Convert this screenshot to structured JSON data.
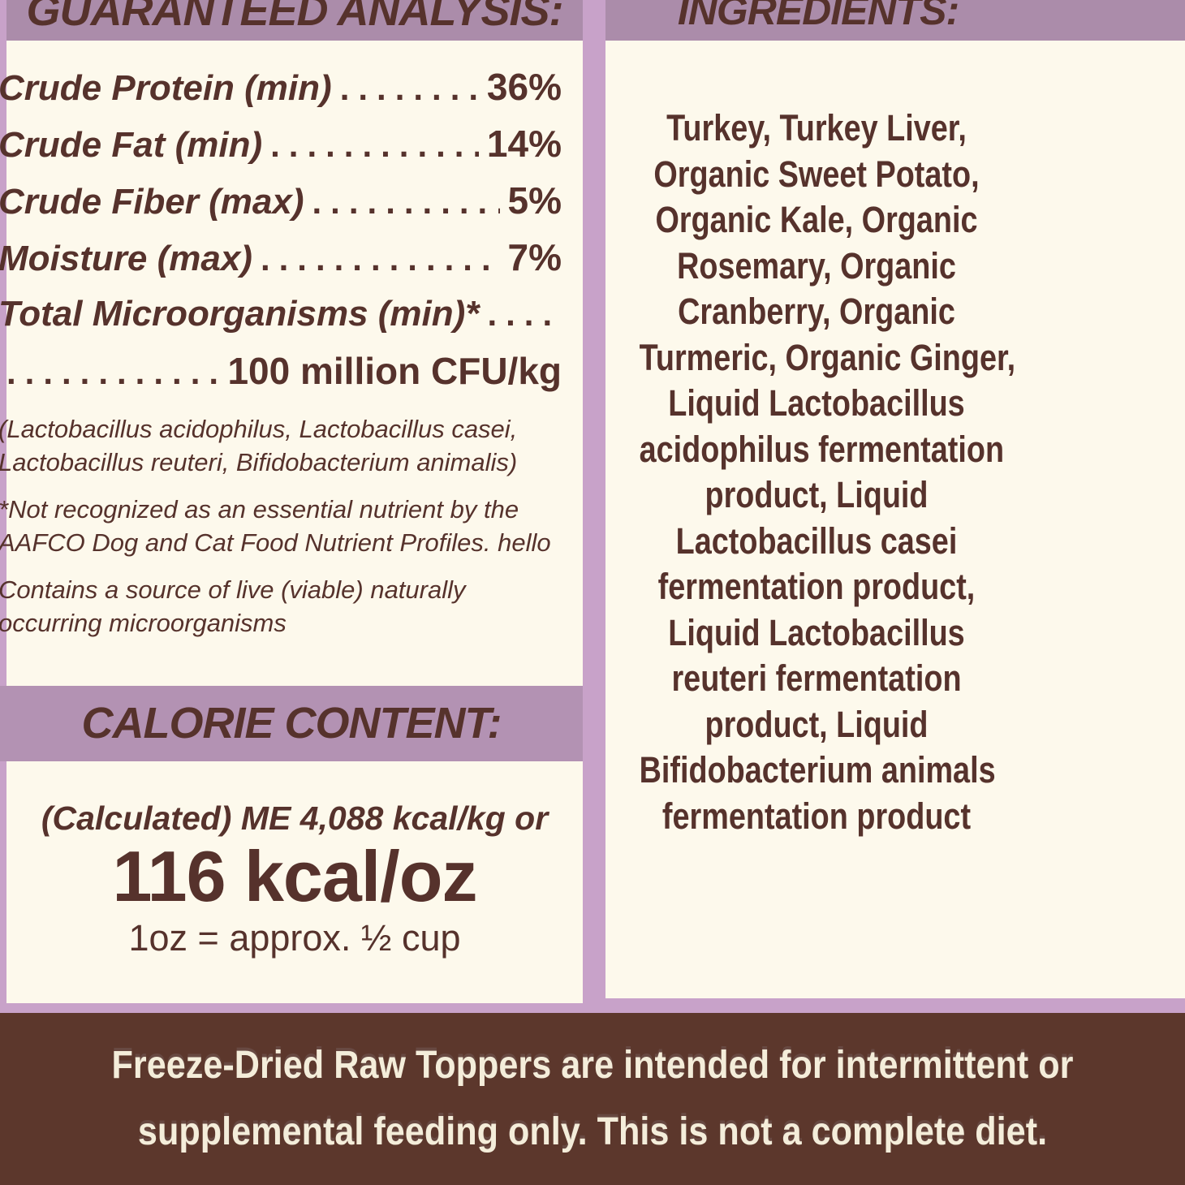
{
  "panels": {
    "guaranteed_analysis": {
      "title": "GUARANTEED ANALYSIS:",
      "rows": [
        {
          "label": "Crude Protein (min)",
          "value": "36%"
        },
        {
          "label": "Crude Fat (min)",
          "value": "14%"
        },
        {
          "label": "Crude Fiber (max)",
          "value": "5%"
        },
        {
          "label": "Moisture (max)",
          "value": "7%"
        }
      ],
      "micro_label": "Total Microorganisms (min)*",
      "micro_value": "100 million CFU/kg",
      "notes": [
        [
          "(Lactobacillus acidophilus, Lactobacillus casei,",
          "Lactobacillus reuteri, Bifidobacterium animalis)"
        ],
        [
          "*Not recognized as an essential nutrient by the",
          "AAFCO Dog and Cat Food Nutrient Profiles. hello"
        ],
        [
          "Contains a source of live (viable) naturally",
          "occurring microorganisms"
        ]
      ]
    },
    "calorie_content": {
      "title": "CALORIE CONTENT:",
      "line1": "(Calculated) ME 4,088 kcal/kg or",
      "line2": "116 kcal/oz",
      "line3": "1oz = approx. ½ cup"
    },
    "ingredients": {
      "title": "INGREDIENTS:",
      "lines": [
        "Turkey, Turkey Liver,",
        "Organic Sweet Potato,",
        "Organic Kale, Organic",
        "Rosemary, Organic",
        "Cranberry, Organic",
        "Turmeric, Organic Ginger,",
        "Liquid Lactobacillus",
        "acidophilus fermentation",
        "product, Liquid",
        "Lactobacillus casei",
        "fermentation product,",
        "Liquid Lactobacillus",
        "reuteri fermentation",
        "product, Liquid",
        "Bifidobacterium animals",
        "fermentation product"
      ]
    }
  },
  "footer": {
    "lines": [
      "Freeze-Dried Raw Toppers are intended for intermittent or",
      "supplemental feeding only. This is not a complete diet."
    ]
  },
  "colors": {
    "cream_panel": "#fdf9ec",
    "lilac_frame": "#c8a2c9",
    "mauve_band": "#ab8caa",
    "calorie_band": "#b392b3",
    "text_brown": "#56322c",
    "footer_bg": "#5c372c",
    "footer_text": "#f4edda"
  }
}
